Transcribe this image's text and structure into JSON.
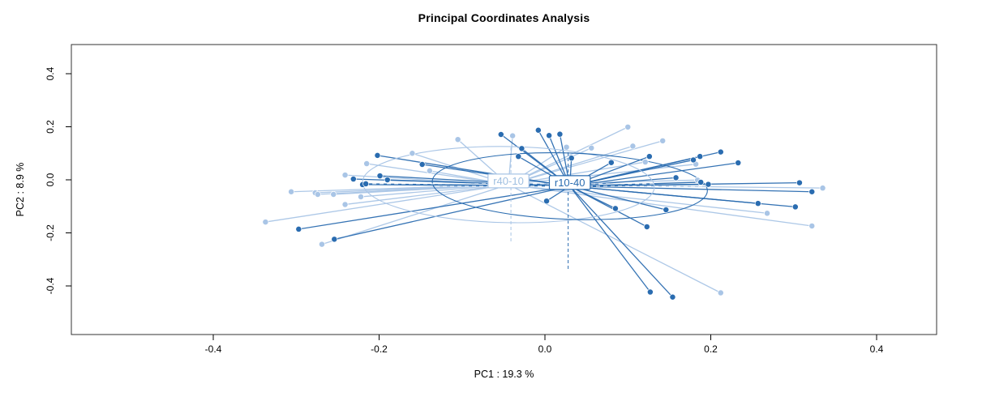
{
  "title": "Principal Coordinates Analysis",
  "chart_data": {
    "type": "scatter",
    "subtype": "pcoa-ordination-spider",
    "title": "Principal Coordinates Analysis",
    "xlabel": "PC1 :  19.3 %",
    "ylabel": "PC2 :  8.9 %",
    "xlim": [
      -0.571,
      0.472
    ],
    "ylim": [
      -0.583,
      0.51
    ],
    "grid": false,
    "x_ticks": {
      "values": [
        -0.4,
        -0.2,
        0.0,
        0.2,
        0.4
      ],
      "labels": [
        "-0.4",
        "-0.2",
        "0.0",
        "0.2",
        "0.4"
      ]
    },
    "y_ticks": {
      "values": [
        0.4,
        0.2,
        0.0,
        -0.2,
        -0.4
      ],
      "labels": [
        "0.4",
        "0.2",
        "0.0",
        "-0.2",
        "-0.4"
      ]
    },
    "axis_color": "#000000",
    "box_color": "#333333",
    "groups": [
      {
        "name": "r40-10",
        "color": "#a9c5e6",
        "label_text_color": "#9fbfe0",
        "centroid": [
          -0.044,
          -0.018
        ],
        "ellipse": {
          "rx": 0.176,
          "ry": 0.1435,
          "rot_deg": 1
        },
        "axis_h": {
          "x1": -0.217,
          "x2": 0.135,
          "y": -0.015
        },
        "axis_v": {
          "x": -0.041,
          "y1": 0.122,
          "y2": -0.238
        },
        "points": [
          [
            -0.215,
            0.061
          ],
          [
            -0.16,
            0.1
          ],
          [
            -0.241,
            0.018
          ],
          [
            -0.139,
            0.034
          ],
          [
            -0.306,
            -0.045
          ],
          [
            -0.277,
            -0.049
          ],
          [
            -0.274,
            -0.055
          ],
          [
            -0.255,
            -0.055
          ],
          [
            -0.222,
            -0.064
          ],
          [
            -0.241,
            -0.093
          ],
          [
            -0.337,
            -0.159
          ],
          [
            -0.269,
            -0.243
          ],
          [
            -0.105,
            0.152
          ],
          [
            -0.039,
            0.166
          ],
          [
            0.026,
            0.123
          ],
          [
            0.056,
            0.12
          ],
          [
            0.1,
            0.199
          ],
          [
            0.106,
            0.127
          ],
          [
            0.121,
            0.067
          ],
          [
            0.142,
            0.147
          ],
          [
            0.182,
            0.059
          ],
          [
            0.184,
            -0.001
          ],
          [
            0.212,
            -0.426
          ],
          [
            0.268,
            -0.126
          ],
          [
            0.322,
            -0.174
          ],
          [
            0.335,
            -0.031
          ]
        ]
      },
      {
        "name": "r10-40",
        "color": "#2a6cb0",
        "label_text_color": "#2a6cb0",
        "centroid": [
          0.03,
          -0.024
        ],
        "ellipse": {
          "rx": 0.166,
          "ry": 0.125,
          "rot_deg": 2
        },
        "axis_h": {
          "x1": -0.132,
          "x2": 0.197,
          "y": -0.024
        },
        "axis_v": {
          "x": 0.028,
          "y1": 0.104,
          "y2": -0.336
        },
        "points": [
          [
            -0.202,
            0.092
          ],
          [
            -0.148,
            0.058
          ],
          [
            -0.231,
            0.003
          ],
          [
            -0.199,
            0.015
          ],
          [
            -0.19,
            0.0
          ],
          [
            -0.22,
            -0.018
          ],
          [
            -0.216,
            -0.015
          ],
          [
            -0.297,
            -0.186
          ],
          [
            -0.254,
            -0.224
          ],
          [
            -0.053,
            0.171
          ],
          [
            -0.008,
            0.187
          ],
          [
            0.005,
            0.167
          ],
          [
            0.018,
            0.172
          ],
          [
            -0.028,
            0.118
          ],
          [
            -0.032,
            0.088
          ],
          [
            0.032,
            0.082
          ],
          [
            0.08,
            0.065
          ],
          [
            0.126,
            0.088
          ],
          [
            0.002,
            -0.08
          ],
          [
            0.085,
            -0.108
          ],
          [
            0.123,
            -0.177
          ],
          [
            0.127,
            -0.423
          ],
          [
            0.154,
            -0.442
          ],
          [
            0.179,
            0.075
          ],
          [
            0.187,
            0.088
          ],
          [
            0.212,
            0.105
          ],
          [
            0.233,
            0.064
          ],
          [
            0.158,
            0.008
          ],
          [
            0.188,
            -0.009
          ],
          [
            0.197,
            -0.017
          ],
          [
            0.307,
            -0.011
          ],
          [
            0.322,
            -0.045
          ],
          [
            0.257,
            -0.089
          ],
          [
            0.302,
            -0.102
          ],
          [
            0.146,
            -0.113
          ]
        ]
      }
    ]
  }
}
